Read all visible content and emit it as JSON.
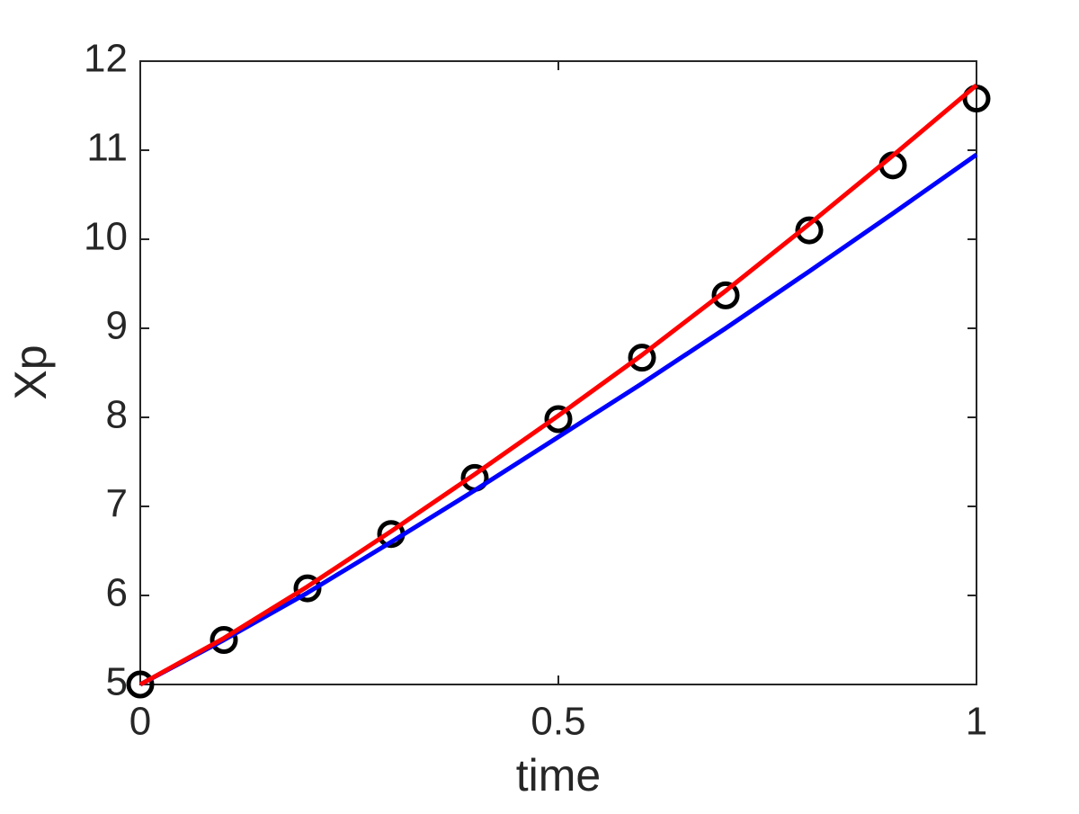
{
  "chart_data": {
    "type": "line",
    "xlabel": "time",
    "ylabel": "Xp",
    "x": [
      0,
      0.1,
      0.2,
      0.3,
      0.4,
      0.5,
      0.6,
      0.7,
      0.8,
      0.9,
      1
    ],
    "series": [
      {
        "color": "#000000",
        "style": "marker",
        "values": [
          5.0,
          5.5,
          6.08,
          6.69,
          7.32,
          7.98,
          8.67,
          9.37,
          10.1,
          10.83,
          11.58
        ]
      },
      {
        "color": "#0000ff",
        "style": "line",
        "values": [
          5.0,
          5.5,
          6.03,
          6.6,
          7.18,
          7.78,
          8.38,
          9.0,
          9.64,
          10.29,
          10.95
        ]
      },
      {
        "color": "#ff0000",
        "style": "line",
        "values": [
          5.0,
          5.52,
          6.1,
          6.72,
          7.36,
          8.02,
          8.7,
          9.42,
          10.17,
          10.94,
          11.73
        ]
      }
    ],
    "xlim": [
      0,
      1
    ],
    "ylim": [
      5,
      12
    ],
    "xticks": [
      0,
      0.5,
      1
    ],
    "yticks": [
      5,
      6,
      7,
      8,
      9,
      10,
      11,
      12
    ],
    "grid": false
  }
}
